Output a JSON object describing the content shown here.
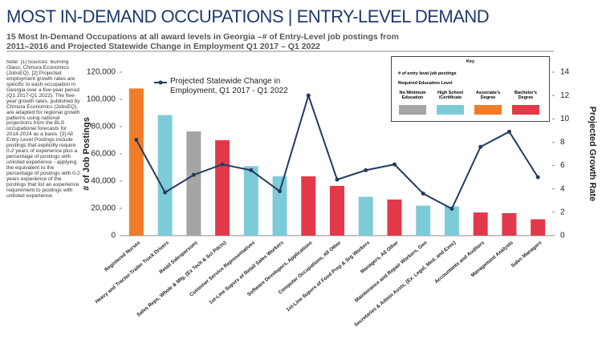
{
  "chart_data": {
    "type": "combo",
    "title": "MOST IN-DEMAND OCCUPATIONS | ENTRY-LEVEL DEMAND",
    "subtitle": "15 Most In-Demand Occupations at all award levels in Georgia –# of Entry-Level job postings from 2011–2016 and Projected Statewide Change in Employment Q1 2017 – Q1 2022",
    "note": "Note: [1] Sources: Burning Glass; Chmura Economics (JobsEQ). [2] Projected employment growth rates are specific to each occupation in Georgia over a five-year period (Q1 2017-Q1 2022). The five-year growth rates, published by Chmura Economics (JobsEQ), are adapted for regional growth patterns using national projections from the BLS occupational forecasts for 2014-2024 as a basis. [3] All Entry Level Postings include postings that explicitly require 0-2 years of experience plus a percentage of postings with unlisted experience - applying the equivalent to the percentage of postings with 0-2 years experience of the postings that list an experience requirement to postings with unlisted experience.",
    "y_label": "# of Job Postings",
    "y2_label": "Projected Growth Rate",
    "categories": [
      "Registered Nurses",
      "Heavy and Tractor-Trailer Truck Drivers",
      "Retail Salespersons",
      "Sales Reps, Whole & Mfg, (Ex Tech & Sci Pdcts)",
      "Customer Service Representatives",
      "1st-Line Supvrs of Retail Sales Workers",
      "Software Developers, Applications",
      "Computer Occupations, All Other",
      "1st-Line Supvrs of Food Prep & Srg Workers",
      "Managers, All Other",
      "Maintenance and Repair Workers, Gen",
      "Secretaries & Admin Assts, (Ex. Legal, Med, and Exec)",
      "Accountants and Auditors",
      "Management Analysts",
      "Sales Managers"
    ],
    "series": [
      {
        "name": "# of entry level job postings",
        "type": "bar",
        "colors": [
          "#f07c2a",
          "#7ecbd8",
          "#a5a5a5",
          "#e2394a",
          "#7ecbd8",
          "#7ecbd8",
          "#e2394a",
          "#e2394a",
          "#7ecbd8",
          "#e2394a",
          "#7ecbd8",
          "#7ecbd8",
          "#e2394a",
          "#e2394a",
          "#e2394a"
        ],
        "values": [
          108000,
          88500,
          76500,
          70000,
          51000,
          43500,
          43500,
          36500,
          28500,
          26500,
          22000,
          21500,
          17000,
          16500,
          12000
        ]
      },
      {
        "name": "Projected Statewide Change in Employment, Q1 2017 - Q1 2022",
        "type": "line",
        "axis": "y2",
        "color": "#243a5e",
        "values": [
          8.2,
          3.7,
          5.2,
          6.1,
          5.6,
          3.8,
          12.0,
          4.8,
          5.6,
          6.1,
          3.6,
          2.3,
          7.6,
          8.9,
          5.0
        ]
      }
    ],
    "ylim": [
      0,
      120000
    ],
    "yticks": [
      0,
      {
        "value": 20000,
        "label": "20,000"
      },
      {
        "value": 40000,
        "label": "40,000"
      },
      {
        "value": 60000,
        "label": "60,000"
      },
      {
        "value": 80000,
        "label": "80,000"
      },
      {
        "value": 100000,
        "label": "100,000"
      },
      {
        "value": 120000,
        "label": "120,000"
      }
    ],
    "y2lim": [
      0,
      14
    ],
    "y2ticks": [
      0,
      2,
      4,
      6,
      8,
      10,
      12,
      14
    ],
    "key": {
      "title": "Key",
      "subtitle": "Required Education Level",
      "levels": [
        {
          "name": "No Minimum Education",
          "color": "#a5a5a5"
        },
        {
          "name": "High School /Certificate",
          "color": "#7ecbd8"
        },
        {
          "name": "Associate's Degree",
          "color": "#f07c2a"
        },
        {
          "name": "Bachelor's Degree",
          "color": "#e2394a"
        }
      ]
    }
  }
}
